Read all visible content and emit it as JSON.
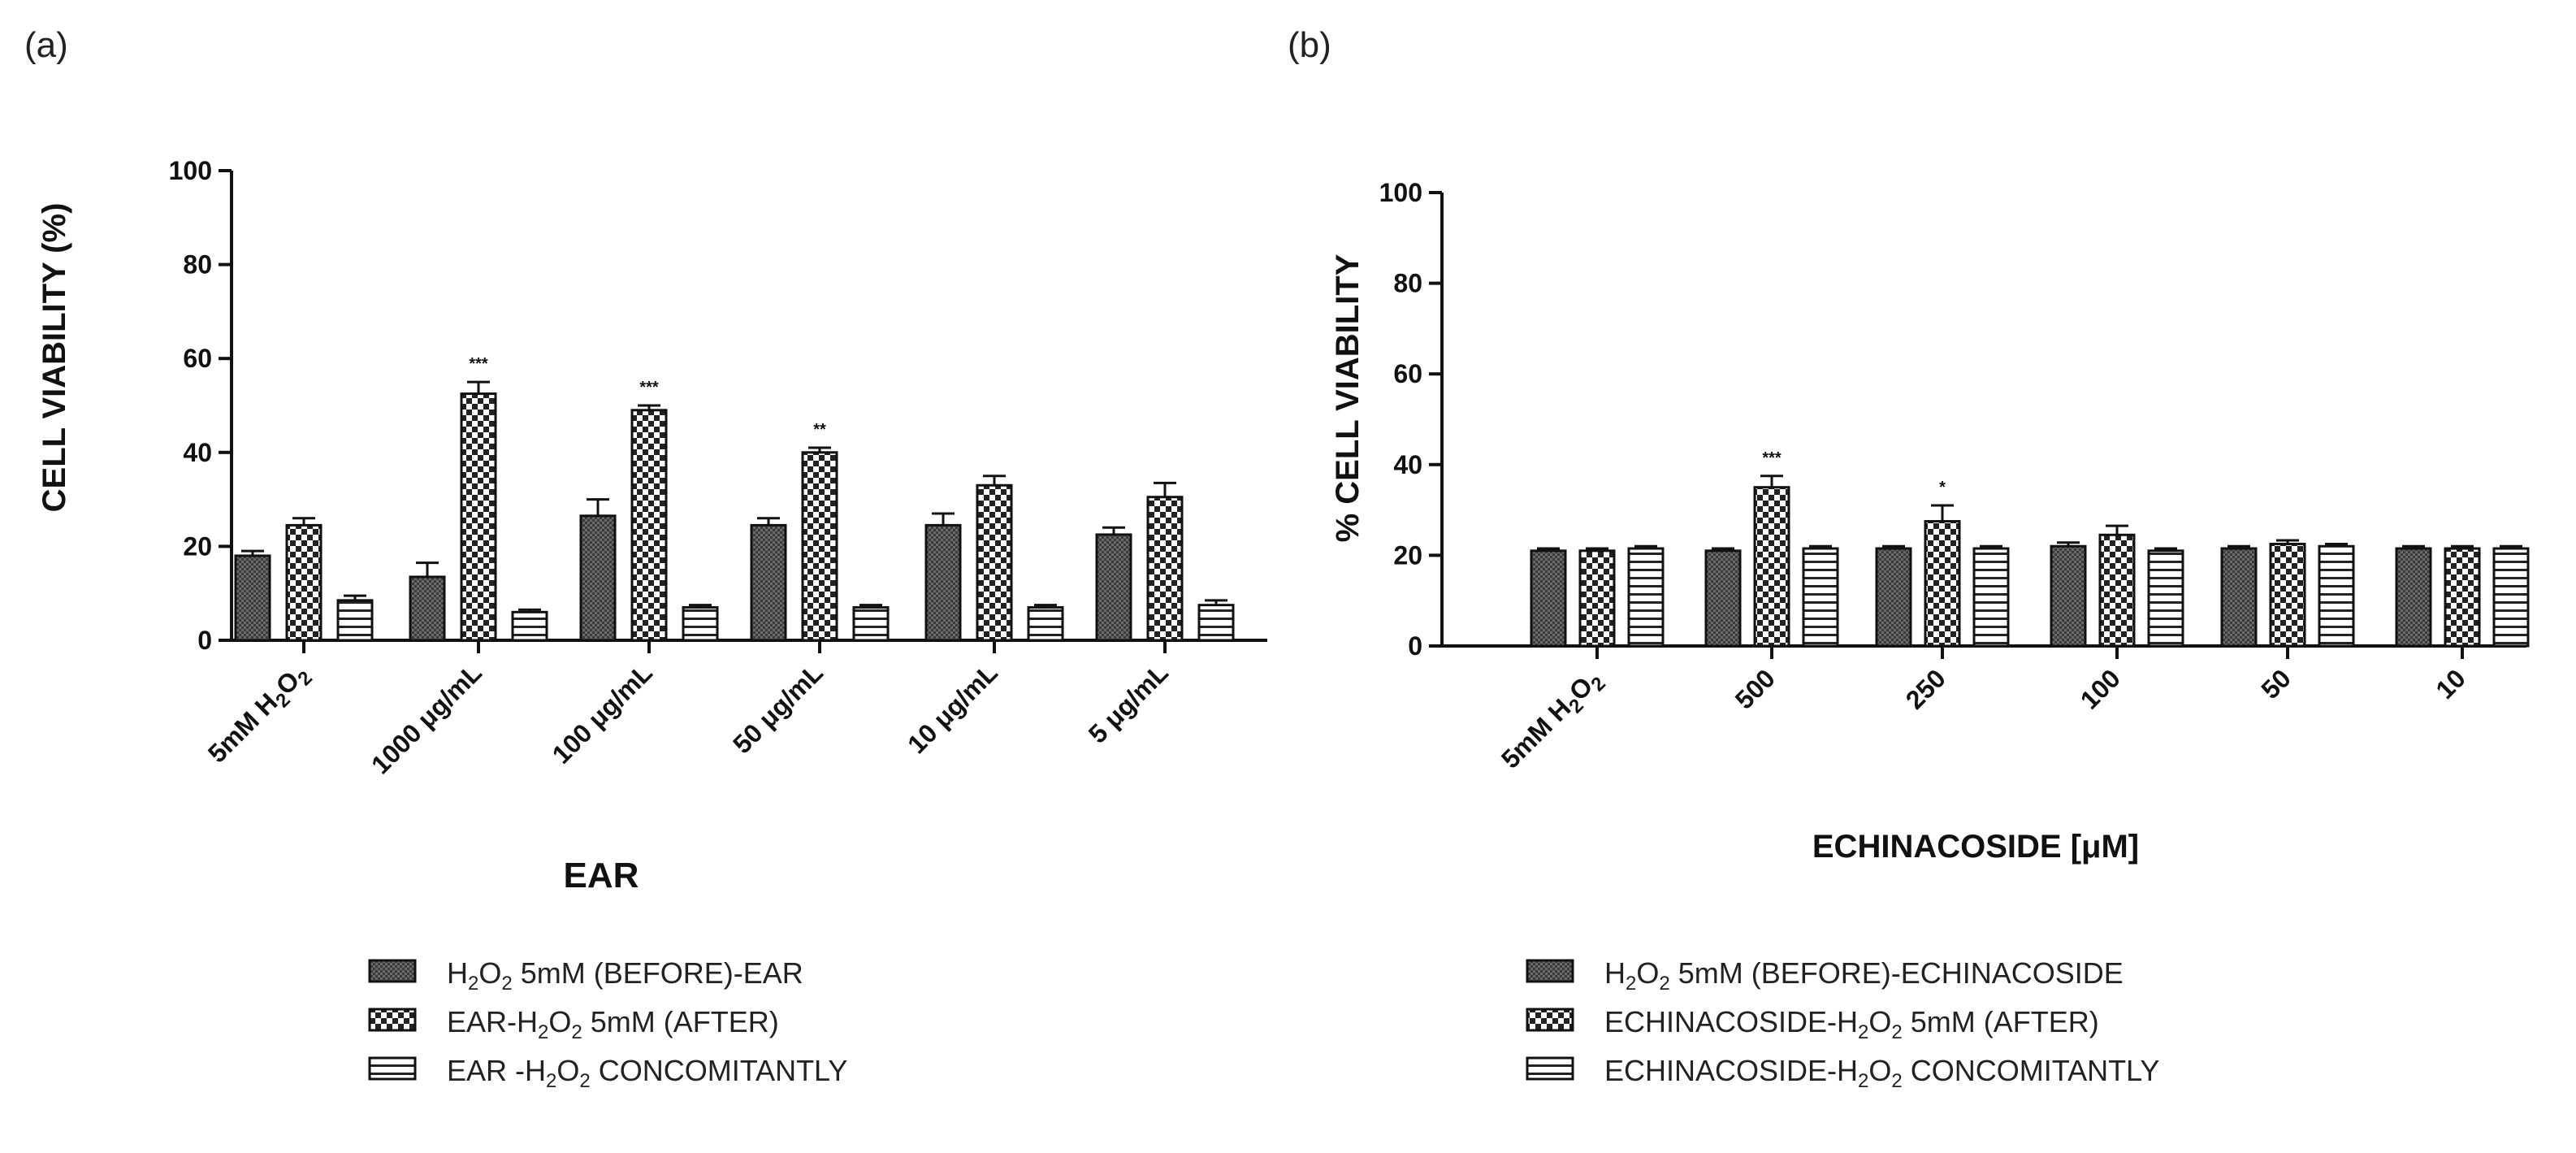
{
  "chart_data": [
    {
      "panel": "(a)",
      "type": "bar",
      "ylabel": "CELL VIABILITY (%)",
      "xlabel": "EAR",
      "ylim": [
        0,
        100
      ],
      "yticks": [
        0,
        20,
        40,
        60,
        80,
        100
      ],
      "categories": [
        {
          "main": "5mM H",
          "sub": "2",
          "rest": "O",
          "sub2": "2"
        },
        {
          "main": "1000 μg/mL"
        },
        {
          "main": "100 μg/mL"
        },
        {
          "main": "50 μg/mL"
        },
        {
          "main": "10 μg/mL"
        },
        {
          "main": "5 μg/mL"
        }
      ],
      "series": [
        {
          "name": "H2O2 5mM (BEFORE)-EAR",
          "pattern": "dense",
          "values": [
            18,
            13.5,
            26.5,
            24.5,
            24.5,
            22.5
          ],
          "errors": [
            1,
            3,
            3.5,
            1.5,
            2.5,
            1.5
          ]
        },
        {
          "name": "EAR-H2O2 5mM (AFTER)",
          "pattern": "checker",
          "values": [
            24.5,
            52.5,
            49,
            40,
            33,
            30.5
          ],
          "errors": [
            1.5,
            2.5,
            1,
            1,
            2,
            3
          ]
        },
        {
          "name": "EAR -H2O2 CONCOMITANTLY",
          "pattern": "hlines",
          "values": [
            8.5,
            6,
            7,
            7,
            7,
            7.5
          ],
          "errors": [
            1,
            0.5,
            0.5,
            0.5,
            0.5,
            1
          ]
        }
      ],
      "significance": [
        {
          "category_index": 1,
          "series_index": 1,
          "label": "***"
        },
        {
          "category_index": 2,
          "series_index": 1,
          "label": "***"
        },
        {
          "category_index": 3,
          "series_index": 1,
          "label": "**"
        }
      ],
      "legend": [
        {
          "pre": "H",
          "sub": "2",
          "mid": "O",
          "sub2": "2",
          "post": " 5mM (BEFORE)-EAR"
        },
        {
          "pre": "EAR-H",
          "sub": "2",
          "mid": "O",
          "sub2": "2",
          "post": " 5mM (AFTER)"
        },
        {
          "pre": "EAR -H",
          "sub": "2",
          "mid": "O",
          "sub2": "2",
          "post": " CONCOMITANTLY"
        }
      ]
    },
    {
      "panel": "(b)",
      "type": "bar",
      "ylabel": "% CELL VIABILITY",
      "xlabel": "ECHINACOSIDE [μM]",
      "ylim": [
        0,
        100
      ],
      "yticks": [
        0,
        20,
        40,
        60,
        80,
        100
      ],
      "categories": [
        {
          "main": "5mM H",
          "sub": "2",
          "rest": "O",
          "sub2": "2"
        },
        {
          "main": "500"
        },
        {
          "main": "250"
        },
        {
          "main": "100"
        },
        {
          "main": "50"
        },
        {
          "main": "10"
        }
      ],
      "series": [
        {
          "name": "H2O2 5mM (BEFORE)-ECHINACOSIDE",
          "pattern": "dense",
          "values": [
            21,
            21,
            21.5,
            22,
            21.5,
            21.5
          ],
          "errors": [
            0.5,
            0.5,
            0.5,
            0.8,
            0.5,
            0.5
          ]
        },
        {
          "name": "ECHINACOSIDE-H2O2 5mM (AFTER)",
          "pattern": "checker",
          "values": [
            21,
            35,
            27.5,
            24.5,
            22.5,
            21.5
          ],
          "errors": [
            0.5,
            2.5,
            3.5,
            2,
            0.8,
            0.5
          ]
        },
        {
          "name": "ECHINACOSIDE-H2O2 CONCOMITANTLY",
          "pattern": "hlines",
          "values": [
            21.5,
            21.5,
            21.5,
            21,
            22,
            21.5
          ],
          "errors": [
            0.5,
            0.5,
            0.5,
            0.5,
            0.5,
            0.5
          ]
        }
      ],
      "significance": [
        {
          "category_index": 1,
          "series_index": 1,
          "label": "***"
        },
        {
          "category_index": 2,
          "series_index": 1,
          "label": "*"
        }
      ],
      "legend": [
        {
          "pre": "H",
          "sub": "2",
          "mid": "O",
          "sub2": "2",
          "post": " 5mM (BEFORE)-ECHINACOSIDE"
        },
        {
          "pre": "ECHINACOSIDE-H",
          "sub": "2",
          "mid": "O",
          "sub2": "2",
          "post": " 5mM (AFTER)"
        },
        {
          "pre": "ECHINACOSIDE-H",
          "sub": "2",
          "mid": "O",
          "sub2": "2",
          "post": " CONCOMITANTLY"
        }
      ]
    }
  ]
}
